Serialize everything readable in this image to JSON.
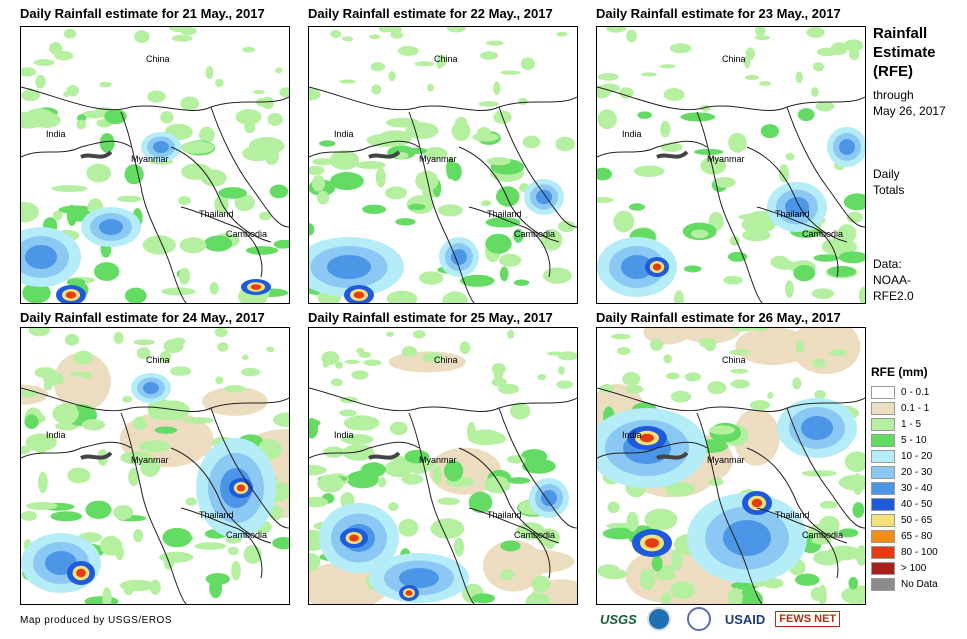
{
  "panels": [
    {
      "title": "Daily Rainfall estimate for 21 May., 2017",
      "day": 21
    },
    {
      "title": "Daily Rainfall estimate for 22 May., 2017",
      "day": 22
    },
    {
      "title": "Daily Rainfall estimate for 23 May., 2017",
      "day": 23
    },
    {
      "title": "Daily Rainfall estimate for 24 May., 2017",
      "day": 24
    },
    {
      "title": "Daily Rainfall estimate for 25 May., 2017",
      "day": 25
    },
    {
      "title": "Daily Rainfall estimate for 26 May., 2017",
      "day": 26
    }
  ],
  "map_labels": {
    "china": "China",
    "india": "India",
    "myanmar": "Myanmar",
    "thailand": "Thailand",
    "cambodia": "Cambodia"
  },
  "side": {
    "title1": "Rainfall",
    "title2": "Estimate",
    "title3": "(RFE)",
    "through": "through",
    "date": "May 26, 2017",
    "daily": "Daily",
    "totals": "Totals",
    "data_label": "Data:",
    "data_src1": "NOAA-",
    "data_src2": "RFE2.0"
  },
  "legend": {
    "title": "RFE (mm)",
    "items": [
      {
        "label": "0 - 0.1",
        "color": "#ffffff"
      },
      {
        "label": "0.1 - 1",
        "color": "#ecdcc0"
      },
      {
        "label": "1 - 5",
        "color": "#b4f0a0"
      },
      {
        "label": "5 - 10",
        "color": "#64dc64"
      },
      {
        "label": "10 - 20",
        "color": "#b4ecf8"
      },
      {
        "label": "20 - 30",
        "color": "#8cc8f4"
      },
      {
        "label": "30 - 40",
        "color": "#4b96e6"
      },
      {
        "label": "40 - 50",
        "color": "#1e5adc"
      },
      {
        "label": "50 - 65",
        "color": "#f5e17a"
      },
      {
        "label": "65 - 80",
        "color": "#f58c14"
      },
      {
        "label": "80 - 100",
        "color": "#e63c14"
      },
      {
        "label": "> 100",
        "color": "#aa1e1e"
      },
      {
        "label": "No Data",
        "color": "#8c8c8c"
      }
    ]
  },
  "credit": "Map produced by USGS/EROS",
  "logos": {
    "usgs": "USGS",
    "usaid": "USAID",
    "fews": "FEWS NET"
  }
}
